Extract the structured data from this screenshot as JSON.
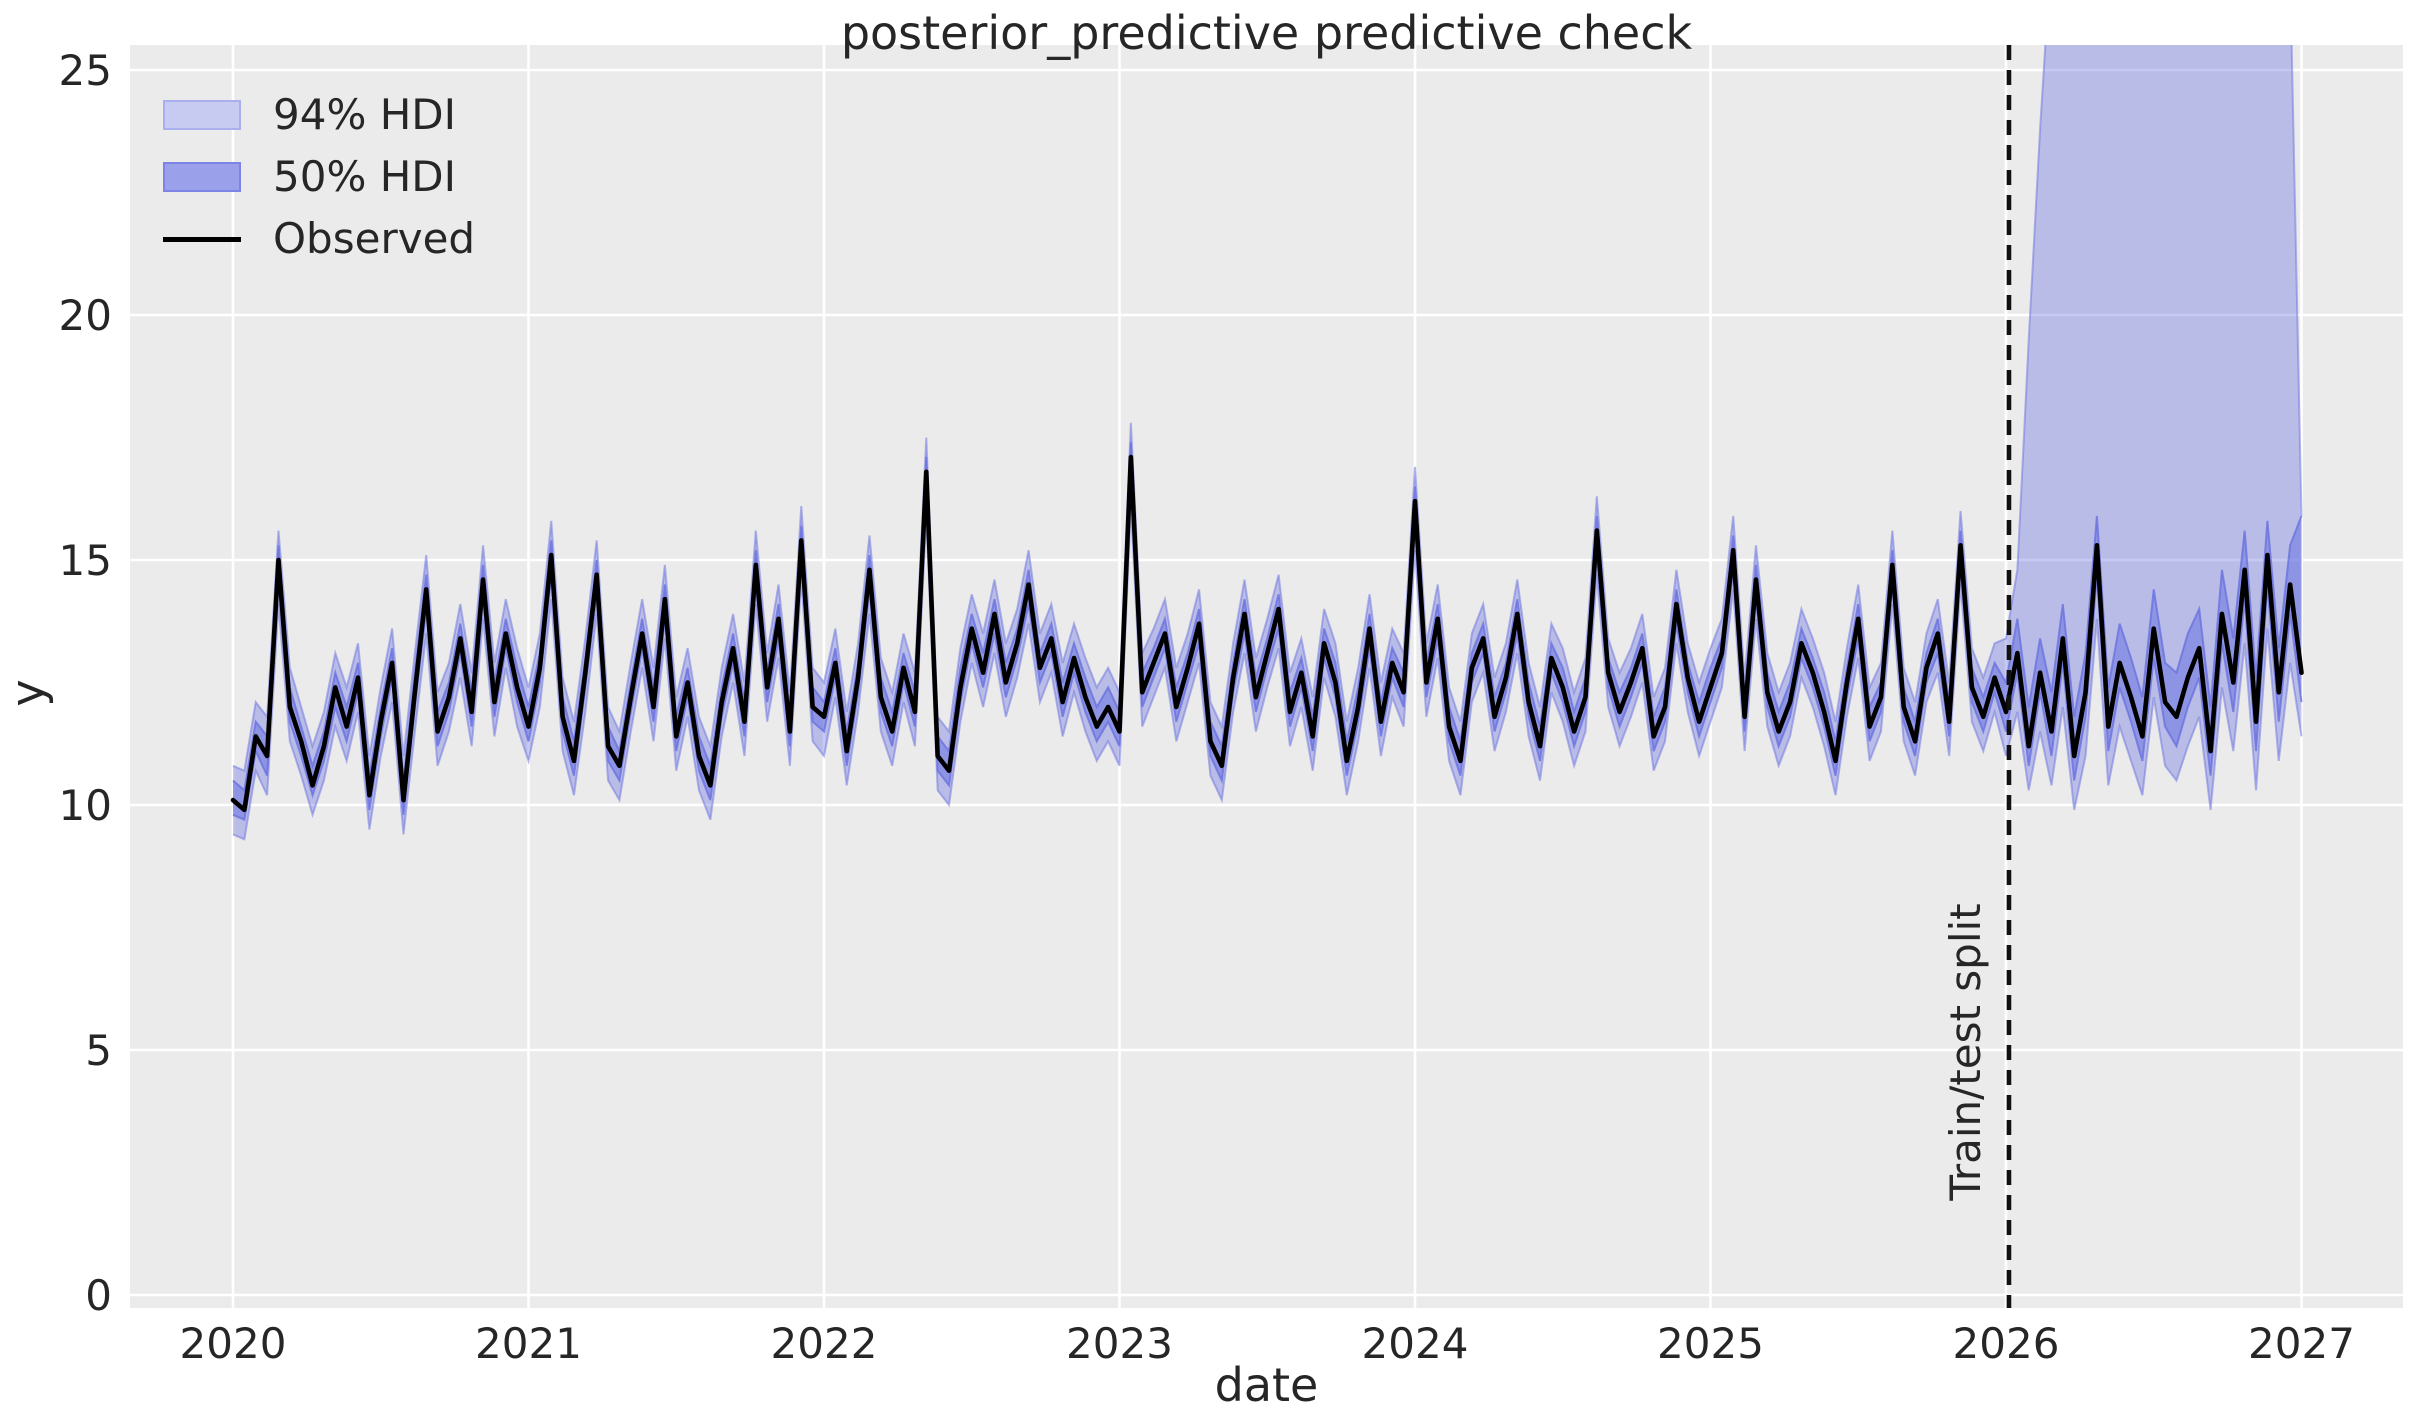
{
  "chart_data": {
    "type": "line",
    "title": "posterior_predictive predictive check",
    "xlabel": "date",
    "ylabel": "y",
    "plot_background": "#ebebeb",
    "grid_color": "#ffffff",
    "text_color": "#262626",
    "xlim": [
      2019.65,
      2027.35
    ],
    "ylim": [
      -0.27,
      25.51
    ],
    "xticks": [
      2020,
      2021,
      2022,
      2023,
      2024,
      2025,
      2026,
      2027
    ],
    "yticks": [
      0,
      5,
      10,
      15,
      20,
      25
    ],
    "grid": true,
    "legend_position": "upper left",
    "legend": {
      "items": [
        {
          "label": "94% HDI",
          "type": "patch",
          "fill": "#c7cbf2",
          "border": "#aab0ee"
        },
        {
          "label": "50% HDI",
          "type": "patch",
          "fill": "#9aa0e9",
          "border": "#7d84e3"
        },
        {
          "label": "Observed",
          "type": "line",
          "color": "#000000"
        }
      ]
    },
    "split": {
      "x": 2026.01,
      "label": "Train/test split",
      "line_color": "#111111"
    },
    "colors": {
      "hdi_base": "#6a72e0",
      "hdi94_alpha": 0.38,
      "hdi50_alpha": 0.55,
      "observed": "#000000"
    },
    "series": {
      "x_start": 2020,
      "x_step": 0.0384615,
      "observed": [
        10.1,
        9.9,
        11.4,
        11.0,
        15.0,
        12.0,
        11.3,
        10.4,
        11.2,
        12.4,
        11.6,
        12.6,
        10.2,
        11.7,
        12.9,
        10.1,
        12.3,
        14.4,
        11.5,
        12.2,
        13.4,
        11.9,
        14.6,
        12.1,
        13.5,
        12.4,
        11.6,
        12.8,
        15.1,
        11.8,
        10.9,
        12.7,
        14.7,
        11.2,
        10.8,
        12.2,
        13.5,
        12.0,
        14.2,
        11.4,
        12.5,
        11.0,
        10.4,
        12.1,
        13.2,
        11.7,
        14.9,
        12.4,
        13.8,
        11.5,
        15.4,
        12.0,
        11.8,
        12.9,
        11.1,
        12.6,
        14.8,
        12.2,
        11.5,
        12.8,
        11.9,
        16.8,
        11.0,
        10.7,
        12.4,
        13.6,
        12.7,
        13.9,
        12.5,
        13.3,
        14.5,
        12.8,
        13.4,
        12.1,
        13.0,
        12.2,
        11.6,
        12.0,
        11.5,
        17.1,
        12.3,
        12.9,
        13.5,
        12.0,
        12.8,
        13.7,
        11.3,
        10.8,
        12.6,
        13.9,
        12.2,
        13.1,
        14.0,
        11.9,
        12.7,
        11.4,
        13.3,
        12.5,
        10.9,
        12.0,
        13.6,
        11.7,
        12.9,
        12.3,
        16.2,
        12.5,
        13.8,
        11.6,
        10.9,
        12.8,
        13.4,
        11.8,
        12.6,
        13.9,
        12.1,
        11.2,
        13.0,
        12.4,
        11.5,
        12.2,
        15.6,
        12.7,
        11.9,
        12.5,
        13.2,
        11.4,
        12.0,
        14.1,
        12.6,
        11.7,
        12.4,
        13.1,
        15.2,
        11.8,
        14.6,
        12.3,
        11.5,
        12.1,
        13.3,
        12.7,
        11.9,
        10.9,
        12.5,
        13.8,
        11.6,
        12.2,
        14.9,
        12.0,
        11.3,
        12.8,
        13.5,
        11.7,
        15.3,
        12.4,
        11.8,
        12.6,
        11.9,
        13.1,
        11.2,
        12.7,
        11.5,
        13.4,
        11.0,
        12.3,
        15.3,
        11.6,
        12.9,
        12.2,
        11.4,
        13.6,
        12.1,
        11.8,
        12.6,
        13.2,
        11.1,
        13.9,
        12.5,
        14.8,
        11.7,
        15.1,
        12.3,
        14.5,
        12.7
      ],
      "hdi50_lower": [
        9.8,
        9.7,
        11.1,
        10.6,
        14.6,
        11.7,
        11.0,
        10.2,
        10.9,
        12.0,
        11.3,
        12.3,
        9.9,
        11.4,
        12.6,
        9.8,
        12.0,
        14.0,
        11.2,
        11.9,
        13.1,
        11.6,
        14.2,
        11.8,
        13.2,
        12.1,
        11.3,
        12.5,
        14.7,
        11.5,
        10.6,
        12.4,
        14.3,
        10.9,
        10.5,
        11.9,
        13.2,
        11.7,
        13.8,
        11.1,
        12.2,
        10.7,
        10.1,
        11.8,
        12.9,
        11.4,
        14.5,
        12.1,
        13.4,
        11.2,
        15.0,
        11.7,
        11.5,
        12.6,
        10.8,
        12.3,
        14.4,
        11.9,
        11.2,
        12.5,
        11.6,
        16.3,
        10.7,
        10.4,
        12.1,
        13.3,
        12.4,
        13.5,
        12.2,
        13.0,
        14.1,
        12.5,
        13.1,
        11.8,
        12.7,
        11.9,
        11.3,
        11.7,
        11.2,
        16.6,
        12.0,
        12.6,
        13.2,
        11.7,
        12.5,
        13.3,
        11.0,
        10.5,
        12.3,
        13.5,
        11.9,
        12.8,
        13.6,
        11.6,
        12.4,
        11.1,
        13.0,
        12.2,
        10.6,
        11.7,
        13.2,
        11.4,
        12.6,
        12.0,
        15.7,
        12.2,
        13.4,
        11.3,
        10.6,
        12.5,
        13.1,
        11.5,
        12.3,
        13.5,
        11.8,
        10.9,
        12.7,
        12.1,
        11.2,
        11.9,
        15.1,
        12.4,
        11.6,
        12.2,
        12.9,
        11.1,
        11.7,
        13.7,
        12.3,
        11.4,
        12.1,
        12.8,
        14.8,
        11.5,
        14.2,
        12.0,
        11.2,
        11.8,
        13.0,
        12.4,
        11.6,
        10.6,
        12.2,
        13.4,
        11.3,
        11.9,
        14.5,
        11.7,
        11.0,
        12.5,
        13.1,
        11.4,
        14.9,
        12.1,
        11.5,
        12.3,
        11.5,
        12.7,
        10.8,
        12.3,
        11.0,
        12.9,
        10.5,
        11.8,
        14.7,
        11.1,
        12.4,
        11.7,
        10.9,
        13.0,
        11.6,
        11.2,
        12.0,
        12.6,
        10.6,
        13.3,
        11.9,
        14.2,
        11.1,
        14.5,
        11.7,
        13.9,
        12.1
      ],
      "hdi50_upper": [
        10.5,
        10.3,
        11.7,
        11.4,
        15.3,
        12.4,
        11.6,
        10.8,
        11.5,
        12.7,
        12.0,
        12.9,
        10.6,
        12.0,
        13.2,
        10.5,
        12.7,
        14.7,
        11.9,
        12.5,
        13.7,
        12.3,
        14.9,
        12.5,
        13.8,
        12.8,
        12.0,
        13.1,
        15.4,
        12.2,
        11.3,
        13.0,
        15.0,
        11.6,
        11.1,
        12.5,
        13.8,
        12.4,
        14.5,
        11.8,
        12.8,
        11.4,
        10.8,
        12.4,
        13.5,
        12.1,
        15.2,
        12.7,
        14.1,
        11.9,
        15.7,
        12.4,
        12.1,
        13.2,
        11.5,
        12.9,
        15.1,
        12.6,
        11.9,
        13.1,
        12.3,
        17.1,
        11.4,
        11.1,
        12.8,
        13.9,
        13.1,
        14.2,
        12.9,
        13.6,
        14.8,
        13.1,
        13.7,
        12.5,
        13.3,
        12.6,
        12.0,
        12.4,
        11.9,
        17.4,
        12.7,
        13.2,
        13.8,
        12.4,
        13.1,
        14.0,
        11.7,
        11.2,
        12.9,
        14.2,
        12.6,
        13.4,
        14.3,
        12.3,
        13.0,
        11.8,
        13.6,
        12.9,
        11.3,
        12.4,
        13.9,
        12.1,
        13.2,
        12.7,
        16.5,
        12.9,
        14.1,
        12.0,
        11.3,
        13.1,
        13.7,
        12.2,
        12.9,
        14.2,
        12.5,
        11.6,
        13.3,
        12.8,
        11.9,
        12.6,
        15.9,
        13.0,
        12.3,
        12.8,
        13.5,
        11.8,
        12.4,
        14.4,
        12.9,
        12.1,
        12.8,
        13.4,
        15.5,
        12.2,
        14.9,
        12.7,
        11.9,
        12.5,
        13.6,
        13.0,
        12.3,
        11.3,
        12.8,
        14.1,
        12.0,
        12.5,
        15.2,
        12.4,
        11.7,
        13.1,
        13.8,
        12.1,
        15.6,
        12.8,
        12.2,
        12.9,
        12.5,
        13.8,
        12.0,
        13.4,
        12.3,
        14.1,
        11.8,
        13.1,
        15.9,
        12.4,
        13.7,
        13.0,
        12.2,
        14.4,
        12.9,
        12.7,
        13.5,
        14.0,
        12.0,
        14.8,
        13.4,
        15.6,
        12.6,
        15.8,
        13.2,
        15.3,
        15.9
      ],
      "hdi94_lower": [
        9.4,
        9.3,
        10.7,
        10.2,
        14.1,
        11.3,
        10.6,
        9.8,
        10.5,
        11.6,
        10.9,
        11.9,
        9.5,
        11.0,
        12.1,
        9.4,
        11.5,
        13.5,
        10.8,
        11.5,
        12.6,
        11.2,
        13.8,
        11.4,
        12.8,
        11.6,
        10.9,
        12.0,
        14.2,
        11.1,
        10.2,
        11.9,
        13.9,
        10.5,
        10.1,
        11.5,
        12.8,
        11.3,
        13.4,
        10.7,
        11.8,
        10.3,
        9.7,
        11.4,
        12.5,
        11.0,
        14.1,
        11.7,
        13.0,
        10.8,
        14.6,
        11.3,
        11.0,
        12.2,
        10.4,
        11.9,
        13.9,
        11.5,
        10.8,
        12.1,
        11.2,
        15.9,
        10.3,
        10.0,
        11.7,
        12.9,
        12.0,
        13.1,
        11.8,
        12.6,
        13.7,
        12.1,
        12.7,
        11.4,
        12.3,
        11.5,
        10.9,
        11.3,
        10.8,
        16.1,
        11.6,
        12.2,
        12.8,
        11.3,
        12.1,
        12.9,
        10.6,
        10.1,
        11.9,
        13.1,
        11.5,
        12.4,
        13.2,
        11.2,
        12.0,
        10.7,
        12.6,
        11.8,
        10.2,
        11.3,
        12.8,
        11.0,
        12.2,
        11.6,
        15.2,
        11.8,
        13.0,
        10.9,
        10.2,
        12.1,
        12.7,
        11.1,
        11.9,
        13.1,
        11.4,
        10.5,
        12.3,
        11.7,
        10.8,
        11.5,
        14.7,
        12.0,
        11.2,
        11.8,
        12.5,
        10.7,
        11.3,
        13.3,
        11.9,
        11.0,
        11.7,
        12.4,
        14.4,
        11.1,
        13.8,
        11.6,
        10.8,
        11.4,
        12.6,
        12.0,
        11.2,
        10.2,
        11.8,
        13.0,
        10.9,
        11.5,
        14.1,
        11.3,
        10.6,
        12.1,
        12.7,
        11.0,
        14.5,
        11.7,
        11.1,
        11.9,
        11.0,
        11.9,
        10.3,
        11.5,
        10.4,
        12.0,
        9.9,
        11.0,
        13.8,
        10.4,
        11.6,
        10.9,
        10.2,
        12.2,
        10.8,
        10.5,
        11.2,
        11.8,
        9.9,
        12.4,
        11.1,
        13.3,
        10.3,
        13.6,
        10.9,
        12.9,
        11.4
      ],
      "hdi94_upper": [
        10.8,
        10.7,
        12.1,
        11.8,
        15.6,
        12.8,
        12.0,
        11.2,
        11.9,
        13.1,
        12.4,
        13.3,
        11.0,
        12.4,
        13.6,
        11.0,
        13.1,
        15.1,
        12.3,
        12.9,
        14.1,
        12.7,
        15.3,
        12.9,
        14.2,
        13.2,
        12.4,
        13.5,
        15.8,
        12.6,
        11.7,
        13.4,
        15.4,
        12.0,
        11.5,
        12.9,
        14.2,
        12.8,
        14.9,
        12.2,
        13.2,
        11.8,
        11.2,
        12.8,
        13.9,
        12.5,
        15.6,
        13.1,
        14.5,
        12.3,
        16.1,
        12.8,
        12.5,
        13.6,
        11.9,
        13.3,
        15.5,
        13.0,
        12.3,
        13.5,
        12.7,
        17.5,
        11.8,
        11.5,
        13.2,
        14.3,
        13.5,
        14.6,
        13.3,
        14.0,
        15.2,
        13.5,
        14.1,
        12.9,
        13.7,
        13.0,
        12.4,
        12.8,
        12.3,
        17.8,
        13.1,
        13.6,
        14.2,
        12.8,
        13.5,
        14.4,
        12.1,
        11.6,
        13.3,
        14.6,
        13.0,
        13.8,
        14.7,
        12.7,
        13.4,
        12.2,
        14.0,
        13.3,
        11.7,
        12.8,
        14.3,
        12.5,
        13.6,
        13.1,
        16.9,
        13.3,
        14.5,
        12.4,
        11.7,
        13.5,
        14.1,
        12.6,
        13.3,
        14.6,
        12.9,
        12.0,
        13.7,
        13.2,
        12.3,
        13.0,
        16.3,
        13.4,
        12.7,
        13.2,
        13.9,
        12.2,
        12.8,
        14.8,
        13.3,
        12.5,
        13.2,
        13.8,
        15.9,
        12.6,
        15.3,
        13.1,
        12.3,
        12.9,
        14.0,
        13.4,
        12.7,
        11.7,
        13.2,
        14.5,
        12.4,
        12.9,
        15.6,
        12.8,
        12.1,
        13.5,
        14.2,
        12.5,
        16.0,
        13.2,
        12.6,
        13.3,
        13.4,
        14.8,
        19.5,
        23.8,
        27.5,
        29.6,
        30.2,
        29.8,
        30.5,
        31.0,
        30.4,
        29.9,
        30.8,
        30.1,
        29.6,
        30.3,
        31.2,
        30.0,
        29.4,
        30.6,
        29.8,
        30.9,
        30.2,
        29.7,
        30.4,
        27.0,
        15.9
      ]
    }
  }
}
